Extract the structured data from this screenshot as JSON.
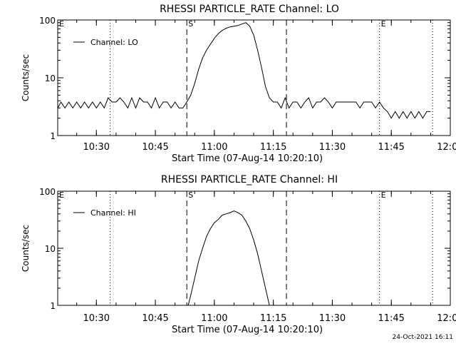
{
  "footer_timestamp": "24-Oct-2021 16:11",
  "marker_labels": {
    "start": "S",
    "end": "E"
  },
  "chart_data": [
    {
      "type": "line",
      "title": "RHESSI PARTICLE_RATE Channel: LO",
      "xlabel": "Start Time (07-Aug-14 10:20:10)",
      "ylabel": "Counts/sec",
      "y_scale": "log",
      "ylim": [
        1,
        100
      ],
      "y_ticks": [
        {
          "value": 1,
          "label": "1"
        },
        {
          "value": 10,
          "label": "10"
        },
        {
          "value": 100,
          "label": "100"
        }
      ],
      "xlim": [
        "10:20:10",
        "12:00:00"
      ],
      "x_ticks": [
        "10:30",
        "10:45",
        "11:00",
        "11:15",
        "11:30",
        "11:45",
        "12:00"
      ],
      "legend": {
        "label": "Channel: LO",
        "position": "top-left"
      },
      "dashed_markers": [
        "10:53:00",
        "11:18:20"
      ],
      "dotted_markers": [
        "10:33:30",
        "11:42:00",
        "11:55:30"
      ],
      "marker_text": [
        {
          "text": "E",
          "time": "10:20:10"
        },
        {
          "text": "S",
          "time": "10:53:00"
        },
        {
          "text": "E",
          "time": "11:42:00"
        }
      ],
      "series": [
        {
          "name": "Channel: LO",
          "x": [
            "10:20:10",
            "10:21:00",
            "10:22:00",
            "10:23:00",
            "10:24:00",
            "10:25:00",
            "10:26:00",
            "10:27:00",
            "10:28:00",
            "10:29:00",
            "10:30:00",
            "10:31:00",
            "10:32:00",
            "10:33:00",
            "10:34:00",
            "10:35:00",
            "10:36:00",
            "10:37:00",
            "10:38:00",
            "10:39:00",
            "10:40:00",
            "10:41:00",
            "10:42:00",
            "10:43:00",
            "10:44:00",
            "10:45:00",
            "10:46:00",
            "10:47:00",
            "10:48:00",
            "10:49:00",
            "10:50:00",
            "10:51:00",
            "10:52:00",
            "10:53:00",
            "10:54:00",
            "10:55:00",
            "10:56:00",
            "10:57:00",
            "10:58:00",
            "10:59:00",
            "11:00:00",
            "11:01:00",
            "11:02:00",
            "11:03:00",
            "11:04:00",
            "11:05:00",
            "11:06:00",
            "11:07:00",
            "11:08:00",
            "11:09:00",
            "11:10:00",
            "11:11:00",
            "11:12:00",
            "11:13:00",
            "11:14:00",
            "11:15:00",
            "11:16:00",
            "11:17:00",
            "11:18:00",
            "11:19:00",
            "11:20:00",
            "11:21:00",
            "11:22:00",
            "11:23:00",
            "11:24:00",
            "11:25:00",
            "11:26:00",
            "11:27:00",
            "11:28:00",
            "11:29:00",
            "11:30:00",
            "11:31:00",
            "11:32:00",
            "11:33:00",
            "11:34:00",
            "11:35:00",
            "11:36:00",
            "11:37:00",
            "11:38:00",
            "11:39:00",
            "11:40:00",
            "11:41:00",
            "11:42:00",
            "11:43:00",
            "11:44:00",
            "11:45:00",
            "11:46:00",
            "11:47:00",
            "11:48:00",
            "11:49:00",
            "11:50:00",
            "11:51:00",
            "11:52:00",
            "11:53:00",
            "11:54:00",
            "11:55:00"
          ],
          "y": [
            3.0,
            3.8,
            3.0,
            3.8,
            3.0,
            3.8,
            3.0,
            3.8,
            3.0,
            3.8,
            3.0,
            3.8,
            3.0,
            4.5,
            3.8,
            3.8,
            4.5,
            3.8,
            3.0,
            4.5,
            3.0,
            4.5,
            3.8,
            3.8,
            3.0,
            4.5,
            3.0,
            3.8,
            3.8,
            3.0,
            3.8,
            3.0,
            3.0,
            3.8,
            5,
            8,
            14,
            22,
            30,
            38,
            48,
            58,
            66,
            72,
            76,
            78,
            80,
            85,
            90,
            78,
            55,
            30,
            15,
            7,
            4.5,
            3.8,
            3.8,
            3.0,
            4.5,
            3.0,
            3.8,
            3.8,
            3.0,
            3.8,
            4.5,
            3.0,
            3.8,
            3.8,
            4.5,
            3.8,
            3.0,
            3.8,
            3.8,
            3.8,
            3.8,
            3.8,
            3.8,
            3.0,
            3.8,
            3.8,
            3.8,
            3.0,
            3.8,
            3.0,
            2.6,
            2.0,
            2.6,
            2.0,
            2.6,
            2.0,
            2.6,
            2.0,
            2.6,
            2.0,
            2.6,
            2.6
          ]
        }
      ]
    },
    {
      "type": "line",
      "title": "RHESSI PARTICLE_RATE Channel: HI",
      "xlabel": "Start Time (07-Aug-14 10:20:10)",
      "ylabel": "Counts/sec",
      "y_scale": "log",
      "ylim": [
        1,
        100
      ],
      "y_ticks": [
        {
          "value": 1,
          "label": "1"
        },
        {
          "value": 10,
          "label": "10"
        },
        {
          "value": 100,
          "label": "100"
        }
      ],
      "xlim": [
        "10:20:10",
        "12:00:00"
      ],
      "x_ticks": [
        "10:30",
        "10:45",
        "11:00",
        "11:15",
        "11:30",
        "11:45",
        "12:00"
      ],
      "legend": {
        "label": "Channel: HI",
        "position": "top-left"
      },
      "dashed_markers": [
        "10:53:00",
        "11:18:20"
      ],
      "dotted_markers": [
        "10:33:30",
        "11:42:00",
        "11:55:30"
      ],
      "marker_text": [
        {
          "text": "E",
          "time": "10:20:10"
        },
        {
          "text": "S",
          "time": "10:53:00"
        },
        {
          "text": "E",
          "time": "11:42:00"
        }
      ],
      "series": [
        {
          "name": "Channel: HI",
          "x": [
            "10:53:20",
            "10:54:00",
            "10:55:00",
            "10:56:00",
            "10:57:00",
            "10:58:00",
            "10:59:00",
            "11:00:00",
            "11:01:00",
            "11:02:00",
            "11:03:00",
            "11:04:00",
            "11:05:00",
            "11:06:00",
            "11:07:00",
            "11:08:00",
            "11:09:00",
            "11:10:00",
            "11:11:00",
            "11:12:00",
            "11:13:00",
            "11:14:00"
          ],
          "y": [
            1.0,
            1.5,
            3,
            6,
            10,
            16,
            22,
            28,
            32,
            38,
            40,
            42,
            45,
            42,
            38,
            30,
            22,
            14,
            8,
            4,
            2,
            1.0
          ]
        }
      ]
    }
  ]
}
